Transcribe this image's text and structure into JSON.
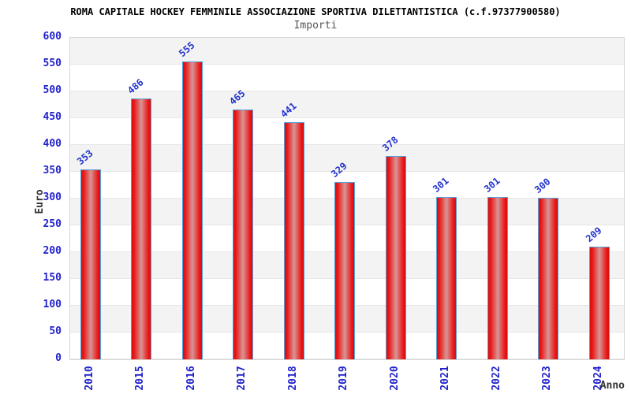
{
  "chart_data": {
    "type": "bar",
    "title": "ROMA CAPITALE HOCKEY FEMMINILE ASSOCIAZIONE SPORTIVA DILETTANTISTICA (c.f.97377900580)",
    "subtitle": "Importi",
    "xlabel": "Anno",
    "ylabel": "Euro",
    "categories": [
      "2010",
      "2015",
      "2016",
      "2017",
      "2018",
      "2019",
      "2020",
      "2021",
      "2022",
      "2023",
      "2024"
    ],
    "values": [
      353,
      486,
      555,
      465,
      441,
      329,
      378,
      301,
      301,
      300,
      209
    ],
    "ylim": [
      0,
      600
    ],
    "ytick_step": 50,
    "grid": "horizontal-bands-alternating",
    "legend": "none",
    "value_labels": "rotated-above-bars",
    "colors": {
      "bar_fill": "#ea1616",
      "bar_edge_dark": "#d41010",
      "bar_highlight": "#d89595",
      "bar_border": "#55a0d9",
      "tick_label": "#2222cc",
      "value_label": "#2233cc",
      "title": "#000000",
      "subtitle": "#555555",
      "axis_label": "#333333",
      "band_gray": "#f3f3f3",
      "grid_line": "#e7e7e7"
    }
  }
}
